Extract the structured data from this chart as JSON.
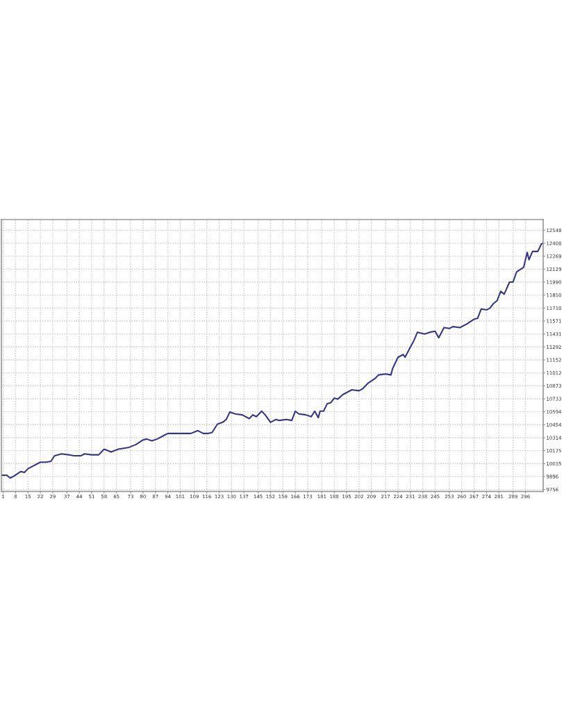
{
  "chart_data": {
    "type": "line",
    "color": "#35358a",
    "x": [
      0,
      3,
      5,
      7,
      11,
      13,
      15,
      18,
      22,
      25,
      28,
      30,
      34,
      38,
      41,
      45,
      47,
      51,
      55,
      58,
      62,
      66,
      69,
      72,
      76,
      80,
      82,
      85,
      88,
      92,
      94,
      98,
      102,
      107,
      111,
      114,
      117,
      119,
      122,
      125,
      127,
      129,
      132,
      136,
      140,
      142,
      144,
      147,
      149,
      152,
      155,
      157,
      161,
      164,
      166,
      168,
      172,
      175,
      177,
      179,
      180,
      182,
      184,
      186,
      188,
      190,
      193,
      195,
      198,
      202,
      204,
      207,
      211,
      213,
      217,
      220,
      221,
      224,
      227,
      228,
      231,
      233,
      235,
      237,
      239,
      242,
      245,
      247,
      250,
      253,
      255,
      259,
      263,
      267,
      269,
      271,
      274,
      276,
      278,
      280,
      282,
      284,
      287,
      289,
      291,
      295,
      297,
      298,
      300,
      303,
      305,
      306
    ],
    "values": [
      9910,
      9910,
      9880,
      9900,
      9950,
      9940,
      9980,
      10010,
      10050,
      10050,
      10060,
      10120,
      10140,
      10130,
      10120,
      10120,
      10140,
      10130,
      10130,
      10190,
      10160,
      10190,
      10200,
      10210,
      10240,
      10290,
      10300,
      10280,
      10300,
      10340,
      10360,
      10360,
      10360,
      10360,
      10390,
      10360,
      10360,
      10370,
      10460,
      10480,
      10510,
      10590,
      10570,
      10560,
      10520,
      10560,
      10540,
      10600,
      10560,
      10480,
      10510,
      10500,
      10510,
      10500,
      10600,
      10570,
      10560,
      10540,
      10600,
      10530,
      10600,
      10600,
      10680,
      10690,
      10740,
      10730,
      10780,
      10800,
      10830,
      10820,
      10840,
      10900,
      10950,
      10990,
      11000,
      10990,
      11060,
      11180,
      11210,
      11180,
      11290,
      11360,
      11450,
      11440,
      11430,
      11450,
      11460,
      11390,
      11500,
      11490,
      11510,
      11500,
      11540,
      11590,
      11600,
      11700,
      11690,
      11710,
      11760,
      11790,
      11890,
      11860,
      11990,
      11990,
      12100,
      12150,
      12310,
      12230,
      12320,
      12320,
      12400,
      12410
    ],
    "xlim": [
      0,
      306
    ],
    "ylim": [
      9735,
      12663
    ],
    "xticks": [
      1,
      8,
      15,
      22,
      29,
      37,
      44,
      51,
      58,
      65,
      73,
      80,
      87,
      94,
      101,
      109,
      116,
      123,
      130,
      137,
      145,
      152,
      159,
      166,
      173,
      181,
      188,
      195,
      202,
      209,
      217,
      224,
      231,
      238,
      245,
      253,
      260,
      267,
      274,
      281,
      289,
      296
    ],
    "yticks": [
      9756,
      9896,
      10035,
      10175,
      10314,
      10454,
      10594,
      10733,
      10873,
      11012,
      11152,
      11292,
      11431,
      11571,
      11710,
      11850,
      11990,
      12129,
      12269,
      12408,
      12548
    ],
    "grid": true
  }
}
